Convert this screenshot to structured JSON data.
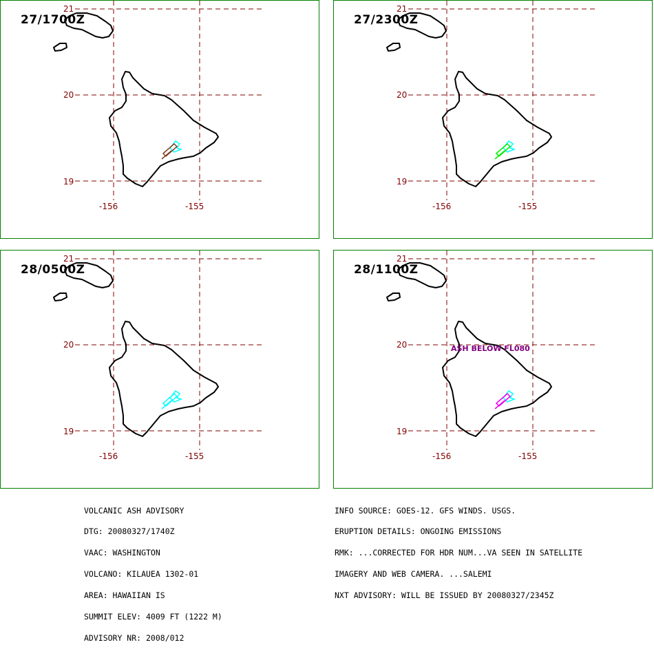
{
  "panels": [
    {
      "time": "27/1700Z",
      "ash_color": "#00ffff",
      "ash_color2": "#804020",
      "note": ""
    },
    {
      "time": "27/2300Z",
      "ash_color": "#00ffff",
      "ash_color2": "#00ee00",
      "note": ""
    },
    {
      "time": "28/0500Z",
      "ash_color": "#00ffff",
      "ash_color2": "#00ffff",
      "note": ""
    },
    {
      "time": "28/1100Z",
      "ash_color": "#00ffff",
      "ash_color2": "#ee00ee",
      "note": "ASH BELOW FL080"
    }
  ],
  "axes": {
    "lat_labels": [
      "21",
      "20",
      "19"
    ],
    "lon_labels": [
      "-156",
      "-155"
    ]
  },
  "footer_left": [
    "VOLCANIC ASH ADVISORY",
    "DTG: 20080327/1740Z",
    "VAAC: WASHINGTON",
    "VOLCANO: KILAUEA 1302-01",
    "AREA: HAWAIIAN IS",
    "SUMMIT ELEV: 4009 FT (1222 M)",
    "ADVISORY NR: 2008/012"
  ],
  "footer_right": [
    "INFO SOURCE: GOES-12. GFS WINDS. USGS.",
    "ERUPTION DETAILS: ONGOING EMISSIONS",
    "RMK: ...CORRECTED FOR HDR NUM...VA SEEN IN SATELLITE",
    "IMAGERY AND WEB CAMERA. ...SALEMI",
    "NXT ADVISORY: WILL BE ISSUED BY 20080327/2345Z"
  ],
  "colors": {
    "border": "#008000",
    "grid": "#800000",
    "coast": "#000000"
  }
}
